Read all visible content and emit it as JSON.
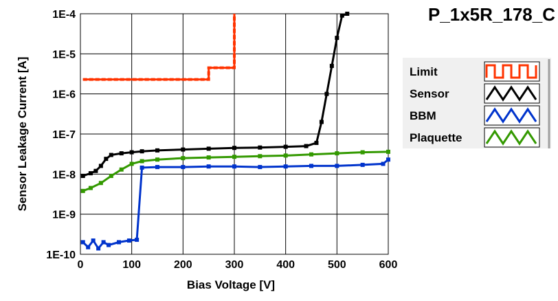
{
  "chart_data": {
    "type": "line",
    "title": "P_1x5R_178_C",
    "xlabel": "Bias Voltage [V]",
    "ylabel": "Sensor Leakage Current [A]",
    "xlim": [
      0,
      600
    ],
    "ylim": [
      1e-10,
      0.0001
    ],
    "yscale": "log",
    "grid": true,
    "legend_placement": "right",
    "x_ticks": [
      "0",
      "100",
      "200",
      "300",
      "400",
      "500",
      "600"
    ],
    "y_ticks": [
      "1E-10",
      "1E-9",
      "1E-8",
      "1E-7",
      "1E-6",
      "1E-5",
      "1E-4"
    ],
    "series": [
      {
        "name": "Limit",
        "color": "#ff3300",
        "markers": false,
        "x": [
          5,
          250,
          250,
          300,
          300
        ],
        "y": [
          2.3e-06,
          2.3e-06,
          4.5e-06,
          4.5e-06,
          0.0001
        ]
      },
      {
        "name": "Sensor",
        "color": "#000000",
        "markers": true,
        "x": [
          5,
          20,
          30,
          40,
          50,
          60,
          80,
          100,
          120,
          150,
          200,
          250,
          300,
          350,
          400,
          440,
          460,
          470,
          480,
          490,
          500,
          510,
          520
        ],
        "y": [
          9e-09,
          1.05e-08,
          1.2e-08,
          1.6e-08,
          2.4e-08,
          3e-08,
          3.3e-08,
          3.5e-08,
          3.7e-08,
          3.9e-08,
          4.1e-08,
          4.3e-08,
          4.5e-08,
          4.6e-08,
          4.8e-08,
          5e-08,
          6e-08,
          2e-07,
          1e-06,
          5e-06,
          2.5e-05,
          9e-05,
          0.0001
        ]
      },
      {
        "name": "BBM",
        "color": "#0033cc",
        "markers": true,
        "x": [
          5,
          15,
          25,
          35,
          45,
          55,
          75,
          95,
          110,
          120,
          150,
          200,
          250,
          300,
          350,
          400,
          450,
          500,
          550,
          590,
          600
        ],
        "y": [
          2e-10,
          1.5e-10,
          2.2e-10,
          1.4e-10,
          2e-10,
          1.7e-10,
          2e-10,
          2.2e-10,
          2.3e-10,
          1.45e-08,
          1.5e-08,
          1.5e-08,
          1.55e-08,
          1.55e-08,
          1.5e-08,
          1.55e-08,
          1.6e-08,
          1.6e-08,
          1.7e-08,
          1.8e-08,
          2.3e-08
        ]
      },
      {
        "name": "Plaquette",
        "color": "#339900",
        "markers": true,
        "x": [
          5,
          20,
          40,
          60,
          80,
          100,
          120,
          150,
          200,
          250,
          300,
          350,
          400,
          450,
          500,
          550,
          600
        ],
        "y": [
          3.8e-09,
          4.5e-09,
          6e-09,
          9e-09,
          1.3e-08,
          1.8e-08,
          2.1e-08,
          2.3e-08,
          2.5e-08,
          2.6e-08,
          2.7e-08,
          2.8e-08,
          2.9e-08,
          3.1e-08,
          3.3e-08,
          3.5e-08,
          3.6e-08
        ]
      }
    ]
  }
}
